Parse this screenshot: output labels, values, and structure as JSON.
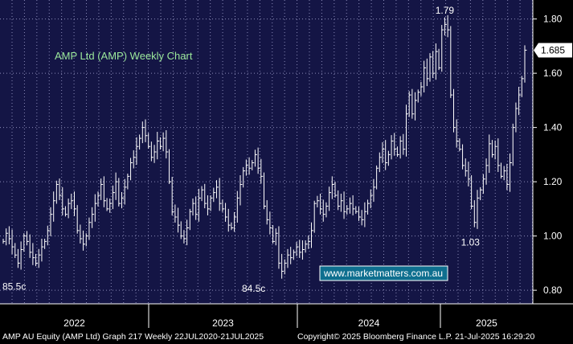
{
  "chart_data": {
    "type": "bar",
    "title": "AMP Ltd (AMP) Weekly Chart",
    "ylim": [
      0.75,
      1.87
    ],
    "y_ticks": [
      "0.80",
      "1.00",
      "1.20",
      "1.40",
      "1.60",
      "1.80"
    ],
    "year_labels": [
      "2022",
      "2023",
      "2024",
      "2025"
    ],
    "last_price": "1.685",
    "annotations": [
      {
        "text": "1.79",
        "value": 1.79
      },
      {
        "text": "1.03",
        "value": 1.03
      },
      {
        "text": "85.5c",
        "value": 0.855
      },
      {
        "text": "84.5c",
        "value": 0.845
      }
    ],
    "closes": [
      0.98,
      1.01,
      0.99,
      0.96,
      0.93,
      0.9,
      0.95,
      1.0,
      0.98,
      0.94,
      0.92,
      0.9,
      0.93,
      0.96,
      0.98,
      1.02,
      1.08,
      1.13,
      1.19,
      1.15,
      1.1,
      1.08,
      1.12,
      1.13,
      1.1,
      1.02,
      0.99,
      0.97,
      1.0,
      1.05,
      1.08,
      1.12,
      1.15,
      1.19,
      1.13,
      1.1,
      1.12,
      1.16,
      1.2,
      1.12,
      1.14,
      1.18,
      1.22,
      1.27,
      1.29,
      1.33,
      1.36,
      1.4,
      1.37,
      1.33,
      1.29,
      1.31,
      1.35,
      1.33,
      1.36,
      1.31,
      1.2,
      1.09,
      1.07,
      1.04,
      1.0,
      0.99,
      1.03,
      1.09,
      1.12,
      1.08,
      1.14,
      1.17,
      1.12,
      1.1,
      1.14,
      1.16,
      1.18,
      1.12,
      1.1,
      1.07,
      1.04,
      1.03,
      1.07,
      1.14,
      1.19,
      1.24,
      1.26,
      1.25,
      1.27,
      1.3,
      1.25,
      1.22,
      1.11,
      1.06,
      1.03,
      0.98,
      1.01,
      0.9,
      0.87,
      0.9,
      0.93,
      0.92,
      0.94,
      0.96,
      0.94,
      0.95,
      0.97,
      0.98,
      1.02,
      1.12,
      1.13,
      1.1,
      1.08,
      1.11,
      1.16,
      1.19,
      1.15,
      1.11,
      1.13,
      1.09,
      1.1,
      1.12,
      1.1,
      1.09,
      1.07,
      1.06,
      1.09,
      1.12,
      1.15,
      1.18,
      1.25,
      1.29,
      1.32,
      1.27,
      1.3,
      1.35,
      1.32,
      1.3,
      1.35,
      1.32,
      1.45,
      1.52,
      1.45,
      1.5,
      1.53,
      1.55,
      1.62,
      1.58,
      1.66,
      1.6,
      1.68,
      1.62,
      1.76,
      1.78,
      1.76,
      1.52,
      1.4,
      1.35,
      1.32,
      1.26,
      1.24,
      1.21,
      1.11,
      1.05,
      1.14,
      1.17,
      1.21,
      1.26,
      1.34,
      1.3,
      1.33,
      1.26,
      1.22,
      1.24,
      1.19,
      1.27,
      1.4,
      1.47,
      1.52,
      1.58,
      1.685
    ]
  },
  "url_label": "www.marketmatters.com.au",
  "footer": {
    "left": "AMP AU Equity (AMP Ltd) Graph 217  Weekly 22JUL2020-21JUL2025",
    "right": "Copyright© 2025 Bloomberg Finance L.P.    21-Jul-2025 16:29:20"
  },
  "colors": {
    "plot_bg": "#141545",
    "title": "#9be89b",
    "bars": "#ffffff",
    "url_box": "#0f6f8f",
    "last_label_bg": "#ffffff"
  }
}
